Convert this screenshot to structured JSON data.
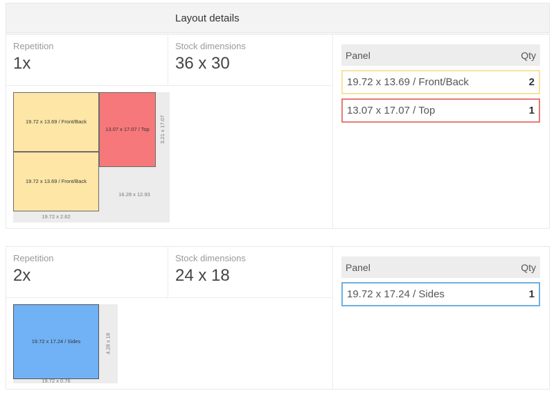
{
  "header": {
    "title": "Layout details"
  },
  "labels": {
    "repetition": "Repetition",
    "stock_dimensions": "Stock dimensions",
    "panel": "Panel",
    "qty": "Qty"
  },
  "colors": {
    "front_back": "#fde6a6",
    "top": "#f6787a",
    "sides": "#71b1f5"
  },
  "layouts": [
    {
      "repetition": "1x",
      "stock": "36 x 30",
      "pieces": [
        {
          "label": "19.72 x 13.69 / Front/Back",
          "color": "yellow"
        },
        {
          "label": "19.72 x 13.69 / Front/Back",
          "color": "yellow"
        },
        {
          "label": "13.07 x 17.07 / Top",
          "color": "red"
        }
      ],
      "waste": [
        {
          "label": "3.21 x 17.07"
        },
        {
          "label": "16.28 x 12.93"
        },
        {
          "label": "19.72 x 2.62"
        }
      ],
      "panels": [
        {
          "name": "19.72 x 13.69 / Front/Back",
          "qty": "2",
          "border": "#f8e2a0"
        },
        {
          "name": "13.07 x 17.07 / Top",
          "qty": "1",
          "border": "#e77a76"
        }
      ]
    },
    {
      "repetition": "2x",
      "stock": "24 x 18",
      "pieces": [
        {
          "label": "19.72 x 17.24 / Sides",
          "color": "blue"
        }
      ],
      "waste": [
        {
          "label": "4.28 x 18"
        },
        {
          "label": "19.72 x 0.76"
        }
      ],
      "panels": [
        {
          "name": "19.72 x 17.24 / Sides",
          "qty": "1",
          "border": "#6faee0"
        }
      ]
    }
  ]
}
